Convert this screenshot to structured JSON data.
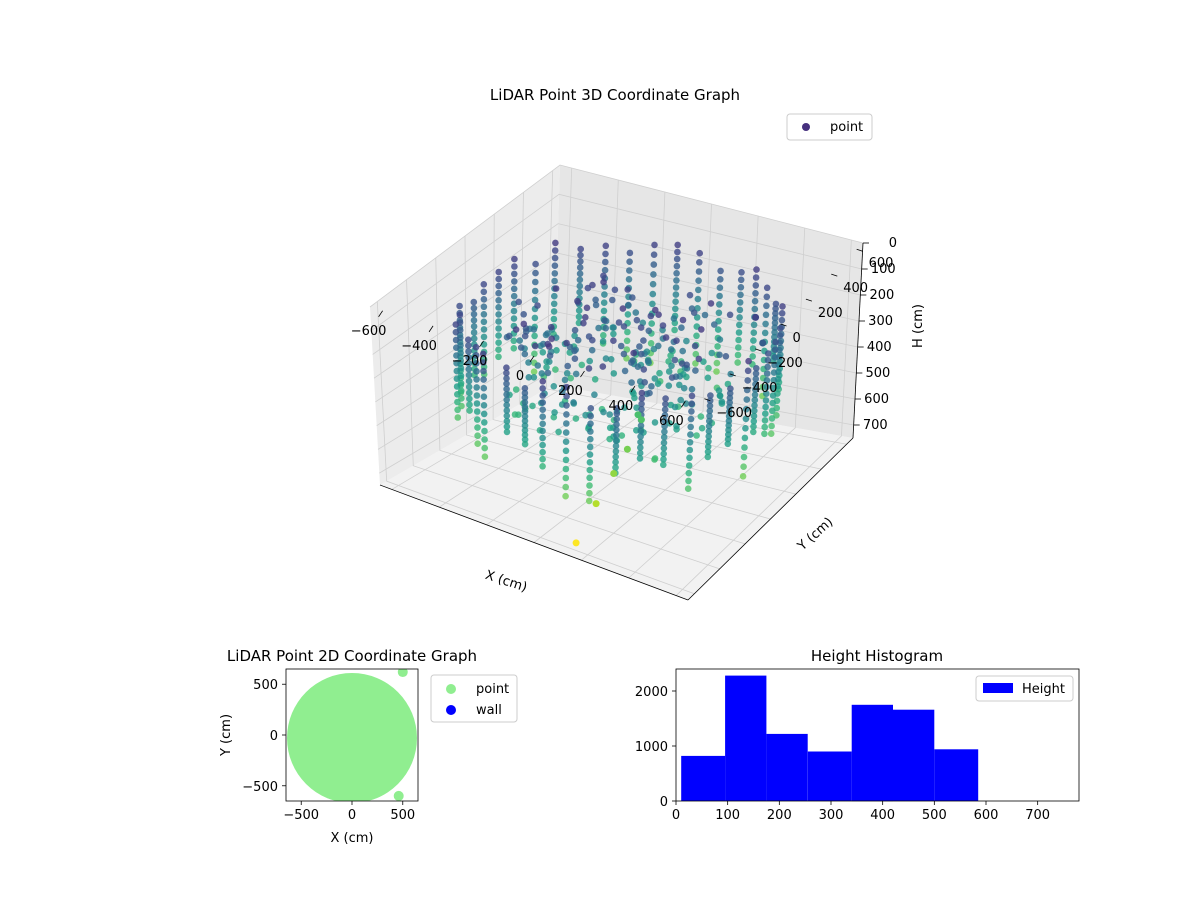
{
  "chart_data": [
    {
      "type": "scatter",
      "projection": "3d",
      "title": "LiDAR Point 3D Coordinate Graph",
      "xlabel": "X (cm)",
      "ylabel": "Y (cm)",
      "zlabel": "H (cm)",
      "xlim": [
        -650,
        650
      ],
      "ylim": [
        -650,
        650
      ],
      "zlim": [
        0,
        750
      ],
      "z_inverted": true,
      "x_ticks": [
        "−600",
        "−400",
        "−200",
        "0",
        "200",
        "400",
        "600"
      ],
      "y_ticks": [
        "600",
        "400",
        "200",
        "0",
        "−200",
        "−400",
        "−600"
      ],
      "z_ticks": [
        "0",
        "100",
        "200",
        "300",
        "400",
        "500",
        "600",
        "700"
      ],
      "colormap": "viridis",
      "legend": [
        {
          "label": "point",
          "color": "#46307e"
        }
      ],
      "legend_position": "top-right",
      "grid": true,
      "outlier_points": [
        {
          "x": 150,
          "y": -600,
          "h": 720
        },
        {
          "x": 140,
          "y": -430,
          "h": 640
        },
        {
          "x": 120,
          "y": -260,
          "h": 600
        },
        {
          "x": 100,
          "y": -120,
          "h": 570
        },
        {
          "x": 80,
          "y": 20,
          "h": 520
        },
        {
          "x": 60,
          "y": 30,
          "h": 510
        },
        {
          "x": 420,
          "y": 250,
          "h": 150
        },
        {
          "x": 480,
          "y": 200,
          "h": 210
        }
      ]
    },
    {
      "type": "scatter",
      "title": "LiDAR Point 2D Coordinate Graph",
      "xlabel": "X (cm)",
      "ylabel": "Y (cm)",
      "xlim": [
        -650,
        650
      ],
      "ylim": [
        -650,
        650
      ],
      "x_ticks": [
        "−500",
        "0",
        "500"
      ],
      "y_ticks": [
        "500",
        "0",
        "−500"
      ],
      "series": [
        {
          "name": "point",
          "color": "#90ee90"
        },
        {
          "name": "wall",
          "color": "#0000ff"
        }
      ],
      "legend_position": "outside-right"
    },
    {
      "type": "bar",
      "title": "Height Histogram",
      "xlabel": "",
      "ylabel": "",
      "bins": [
        {
          "from": 10,
          "to": 95,
          "count": 820
        },
        {
          "from": 95,
          "to": 175,
          "count": 2280
        },
        {
          "from": 175,
          "to": 255,
          "count": 1220
        },
        {
          "from": 255,
          "to": 340,
          "count": 900
        },
        {
          "from": 340,
          "to": 420,
          "count": 1750
        },
        {
          "from": 420,
          "to": 500,
          "count": 1660
        },
        {
          "from": 500,
          "to": 585,
          "count": 940
        }
      ],
      "xlim": [
        0,
        780
      ],
      "ylim": [
        0,
        2400
      ],
      "x_ticks": [
        0,
        100,
        200,
        300,
        400,
        500,
        600,
        700
      ],
      "y_ticks": [
        0,
        1000,
        2000
      ],
      "color": "#0000ff",
      "series": [
        {
          "name": "Height"
        }
      ],
      "legend_position": "top-right"
    }
  ]
}
